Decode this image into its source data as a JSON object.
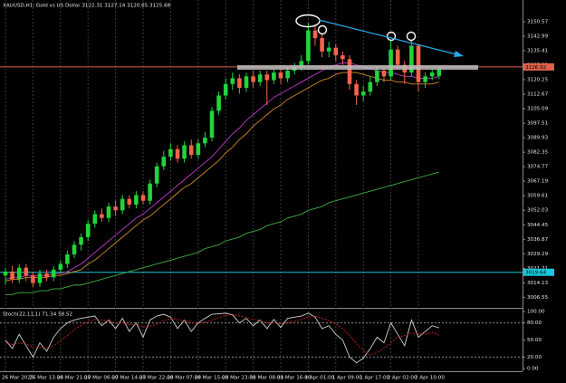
{
  "chart_data": [
    {
      "type": "candlestick",
      "title": "XAUUSD,H1:  Gold vs US Dollar  3122.31 3127.14 3120.65 3125.68",
      "categories": [
        "26 Mar 2025",
        null,
        null,
        null,
        "26 Mar 13:00",
        null,
        null,
        null,
        "26 Mar 21:00",
        null,
        null,
        null,
        "27 Mar 06:00",
        null,
        null,
        null,
        "27 Mar 14:00",
        null,
        null,
        null,
        "27 Mar 22:00",
        null,
        null,
        null,
        "28 Mar 07:00",
        null,
        null,
        null,
        "28 Mar 15:00",
        null,
        null,
        null,
        "28 Mar 23:00",
        null,
        null,
        null,
        "31 Mar 08:00",
        null,
        null,
        null,
        "31 Mar 16:00",
        null,
        null,
        null,
        "1 Apr 01:00",
        null,
        null,
        null,
        "1 Apr 09:00",
        null,
        null,
        null,
        "1 Apr 17:00",
        null,
        null,
        null,
        "2 Apr 02:00",
        null,
        null,
        null,
        "2 Apr 10:00",
        null,
        null,
        null
      ],
      "open": [
        3018,
        3020,
        3016,
        3022,
        3018,
        3014,
        3019,
        3017,
        3021,
        3024,
        3029,
        3034,
        3038,
        3045,
        3050,
        3048,
        3054,
        3052,
        3058,
        3055,
        3060,
        3057,
        3066,
        3075,
        3080,
        3084,
        3079,
        3086,
        3081,
        3087,
        3090,
        3104,
        3112,
        3118,
        3121,
        3116,
        3122,
        3119,
        3123,
        3120,
        3124,
        3121,
        3125,
        3127,
        3130,
        3146,
        3142,
        3135,
        3137,
        3133,
        3131,
        3118,
        3112,
        3114,
        3119,
        3125,
        3122,
        3136,
        3128,
        3124,
        3138,
        3119,
        3122,
        3122.31
      ],
      "high": [
        3022,
        3023,
        3024,
        3024,
        3020,
        3021,
        3021,
        3023,
        3026,
        3031,
        3036,
        3040,
        3047,
        3052,
        3053,
        3056,
        3057,
        3060,
        3060,
        3062,
        3062,
        3068,
        3077,
        3083,
        3087,
        3086,
        3088,
        3089,
        3089,
        3093,
        3106,
        3114,
        3121,
        3124,
        3123,
        3124,
        3125,
        3125,
        3125,
        3126,
        3126,
        3127,
        3129,
        3133,
        3150,
        3149,
        3144,
        3140,
        3139,
        3135,
        3133,
        3120,
        3117,
        3122,
        3127,
        3127,
        3141,
        3138,
        3130,
        3141,
        3139,
        3124,
        3126,
        3127.14
      ],
      "low": [
        3013,
        3014,
        3014,
        3015,
        3012,
        3012,
        3015,
        3015,
        3019,
        3022,
        3027,
        3031,
        3036,
        3043,
        3046,
        3046,
        3049,
        3050,
        3053,
        3053,
        3055,
        3055,
        3064,
        3073,
        3078,
        3077,
        3077,
        3079,
        3079,
        3085,
        3088,
        3102,
        3110,
        3115,
        3113,
        3114,
        3116,
        3117,
        3107,
        3118,
        3118,
        3119,
        3123,
        3125,
        3128,
        3138,
        3132,
        3132,
        3130,
        3128,
        3115,
        3107,
        3109,
        3112,
        3117,
        3119,
        3120,
        3126,
        3118,
        3122,
        3114,
        3116,
        3120,
        3120.65
      ],
      "close": [
        3020,
        3016,
        3022,
        3018,
        3014,
        3019,
        3017,
        3021,
        3024,
        3029,
        3034,
        3038,
        3045,
        3050,
        3048,
        3054,
        3052,
        3058,
        3055,
        3060,
        3057,
        3066,
        3075,
        3080,
        3084,
        3079,
        3086,
        3081,
        3087,
        3090,
        3104,
        3112,
        3118,
        3121,
        3116,
        3122,
        3119,
        3123,
        3120,
        3124,
        3121,
        3125,
        3127,
        3130,
        3146,
        3142,
        3135,
        3137,
        3133,
        3131,
        3118,
        3112,
        3114,
        3119,
        3125,
        3122,
        3136,
        3128,
        3124,
        3138,
        3119,
        3122,
        3124,
        3125.68
      ],
      "up_color": "#22d43a",
      "down_color": "#f4634a",
      "lines": [
        {
          "color": "#c03ac8",
          "values": [
            3016,
            3017,
            3017,
            3018,
            3018,
            3018,
            3018,
            3019,
            3019,
            3020,
            3022,
            3024,
            3027,
            3030,
            3033,
            3036,
            3039,
            3042,
            3045,
            3048,
            3050,
            3053,
            3056,
            3059,
            3062,
            3065,
            3068,
            3071,
            3074,
            3077,
            3080,
            3084,
            3088,
            3092,
            3095,
            3099,
            3102,
            3105,
            3108,
            3111,
            3113,
            3115,
            3117,
            3119,
            3121,
            3123,
            3125,
            3127,
            3128,
            3129,
            3129,
            3128,
            3127,
            3126,
            3125,
            3124,
            3124,
            3123,
            3122,
            3122,
            3121,
            3121,
            3121,
            3122
          ]
        },
        {
          "color": "#d08a2a",
          "values": [
            3015,
            3016,
            3016,
            3017,
            3017,
            3017,
            3017,
            3018,
            3018,
            3019,
            3020,
            3021,
            3024,
            3026,
            3029,
            3032,
            3035,
            3038,
            3041,
            3044,
            3047,
            3049,
            3052,
            3055,
            3058,
            3061,
            3064,
            3066,
            3069,
            3072,
            3075,
            3078,
            3082,
            3085,
            3089,
            3092,
            3096,
            3099,
            3102,
            3105,
            3107,
            3110,
            3112,
            3114,
            3116,
            3118,
            3120,
            3121,
            3123,
            3124,
            3124,
            3124,
            3123,
            3122,
            3121,
            3120,
            3120,
            3119,
            3119,
            3118,
            3118,
            3118,
            3118,
            3119
          ]
        },
        {
          "color": "#3fae3f",
          "values": [
            3008,
            3008,
            3009,
            3009,
            3009,
            3010,
            3010,
            3011,
            3011,
            3012,
            3013,
            3013,
            3014,
            3015,
            3016,
            3017,
            3018,
            3019,
            3020,
            3021,
            3022,
            3023,
            3024,
            3025,
            3026,
            3027,
            3028,
            3029,
            3030,
            3032,
            3033,
            3034,
            3036,
            3037,
            3038,
            3040,
            3041,
            3042,
            3044,
            3045,
            3046,
            3048,
            3049,
            3050,
            3052,
            3053,
            3054,
            3056,
            3057,
            3058,
            3059,
            3060,
            3061,
            3062,
            3063,
            3064,
            3065,
            3066,
            3067,
            3068,
            3069,
            3070,
            3071,
            3072
          ]
        }
      ],
      "hlines": [
        {
          "value": 3126.92,
          "color": "#e0604a"
        },
        {
          "value": 3019.64,
          "color": "#18c8dc"
        }
      ],
      "ylim": [
        3002,
        3160
      ],
      "yticks": [
        3006.55,
        3014.13,
        3021.71,
        3029.29,
        3036.87,
        3044.45,
        3052.03,
        3059.61,
        3067.19,
        3074.77,
        3082.35,
        3089.93,
        3097.51,
        3105.09,
        3112.67,
        3120.25,
        3127.83,
        3135.41,
        3142.99,
        3150.57
      ],
      "grid": true
    },
    {
      "type": "line",
      "title": "Stoch(22,11,1) 71.34 58.52",
      "series": [
        {
          "color": "#d0d0d0",
          "values": [
            50,
            35,
            60,
            40,
            20,
            45,
            30,
            55,
            70,
            80,
            85,
            88,
            90,
            92,
            75,
            85,
            70,
            88,
            65,
            80,
            55,
            85,
            92,
            95,
            90,
            70,
            85,
            65,
            80,
            88,
            95,
            96,
            97,
            94,
            80,
            88,
            75,
            85,
            70,
            86,
            72,
            88,
            90,
            92,
            97,
            90,
            70,
            75,
            60,
            50,
            20,
            10,
            18,
            35,
            55,
            45,
            80,
            60,
            40,
            85,
            55,
            65,
            75,
            71.34
          ]
        },
        {
          "color": "#d02020",
          "dashed": true,
          "values": [
            45,
            42,
            45,
            43,
            38,
            37,
            36,
            40,
            48,
            58,
            68,
            76,
            82,
            86,
            85,
            84,
            80,
            80,
            77,
            78,
            73,
            74,
            78,
            84,
            88,
            86,
            84,
            80,
            79,
            81,
            85,
            89,
            93,
            95,
            92,
            90,
            86,
            84,
            80,
            80,
            78,
            80,
            83,
            86,
            90,
            92,
            88,
            84,
            78,
            70,
            58,
            44,
            32,
            24,
            28,
            35,
            45,
            55,
            58,
            62,
            62,
            60,
            63,
            58.52
          ]
        }
      ],
      "levels": [
        80,
        20
      ],
      "ylim": [
        0,
        100
      ],
      "yticks": [
        {
          "value": 0,
          "label": "0.00"
        },
        {
          "value": 20,
          "label": "20.00"
        },
        {
          "value": 50,
          "label": "50.00"
        },
        {
          "value": 80,
          "label": "80.00"
        },
        {
          "value": 100,
          "label": "100.00"
        }
      ]
    }
  ]
}
